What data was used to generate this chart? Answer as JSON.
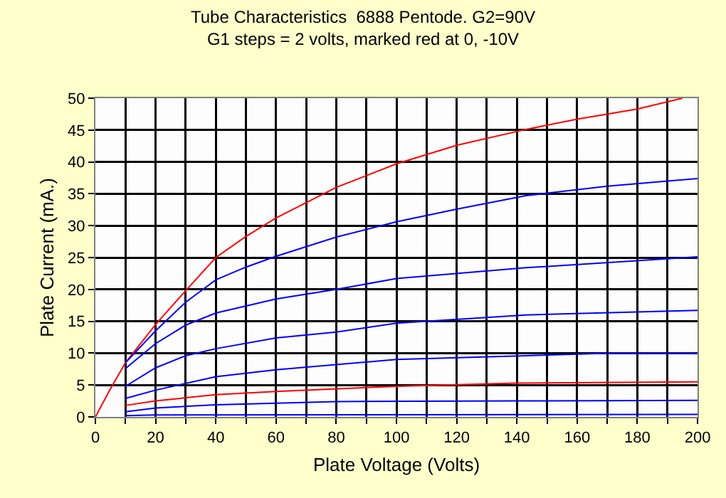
{
  "chart_data": {
    "type": "line",
    "title": "Tube Characteristics  6888 Pentode. G2=90V",
    "subtitle": "G1 steps = 2 volts, marked red at 0, -10V",
    "xlabel": "Plate Voltage (Volts)",
    "ylabel": "Plate Current (mA.)",
    "xlim": [
      0,
      200
    ],
    "xticks": [
      0,
      {
        "value": 10,
        "label": null
      },
      20,
      {
        "value": 30,
        "label": null
      },
      40,
      {
        "value": 50,
        "label": null
      },
      60,
      {
        "value": 70,
        "label": null
      },
      80,
      {
        "value": 90,
        "label": null
      },
      100,
      {
        "value": 110,
        "label": null
      },
      120,
      {
        "value": 130,
        "label": null
      },
      140,
      {
        "value": 150,
        "label": null
      },
      160,
      {
        "value": 170,
        "label": null
      },
      180,
      {
        "value": 190,
        "label": null
      },
      200
    ],
    "ylim": [
      0,
      50
    ],
    "yticks": [
      0,
      5,
      10,
      15,
      20,
      25,
      30,
      35,
      40,
      45,
      50
    ],
    "grid": true,
    "marker": "none",
    "line_style": "solid",
    "series": [
      {
        "color": "#ff0000",
        "x": [
          0,
          5,
          10,
          20,
          30,
          40,
          50,
          60,
          80,
          100,
          120,
          143,
          160,
          180,
          195
        ],
        "values": [
          0,
          4.4,
          8.5,
          14.5,
          19.8,
          25,
          28.3,
          31.2,
          36,
          39.7,
          42.6,
          45.1,
          46.7,
          48.3,
          50
        ]
      },
      {
        "color": "#0000ff",
        "x": [
          10,
          20,
          30,
          40,
          50,
          60,
          80,
          100,
          120,
          143,
          170,
          200
        ],
        "values": [
          8.5,
          13.5,
          18,
          21.5,
          23.5,
          25.2,
          28.2,
          30.6,
          32.6,
          34.7,
          36.2,
          37.4
        ]
      },
      {
        "color": "#0000ff",
        "x": [
          10,
          20,
          30,
          40,
          60,
          80,
          100,
          143,
          200
        ],
        "values": [
          7.6,
          11.5,
          14.4,
          16.3,
          18.5,
          20,
          21.7,
          23.4,
          25.1
        ]
      },
      {
        "color": "#0000ff",
        "x": [
          10,
          20,
          30,
          40,
          60,
          80,
          100,
          143,
          200
        ],
        "values": [
          4.8,
          7.7,
          9.6,
          10.7,
          12.4,
          13.3,
          14.7,
          16,
          16.7
        ]
      },
      {
        "color": "#0000ff",
        "x": [
          10,
          20,
          40,
          60,
          100,
          143,
          170,
          200
        ],
        "values": [
          2.9,
          4.2,
          6.3,
          7.4,
          9.0,
          9.6,
          10,
          10
        ]
      },
      {
        "color": "#ff0000",
        "x": [
          10,
          20,
          40,
          60,
          100,
          140,
          200
        ],
        "values": [
          1.8,
          2.5,
          3.5,
          4,
          4.8,
          5.3,
          5.5
        ]
      },
      {
        "color": "#0000ff",
        "x": [
          10,
          20,
          40,
          80,
          140,
          200
        ],
        "values": [
          0.8,
          1.4,
          1.9,
          2.4,
          2.5,
          2.6
        ]
      },
      {
        "color": "#0000ff",
        "x": [
          10,
          20,
          200
        ],
        "values": [
          0.2,
          0.3,
          0.4
        ]
      }
    ]
  }
}
